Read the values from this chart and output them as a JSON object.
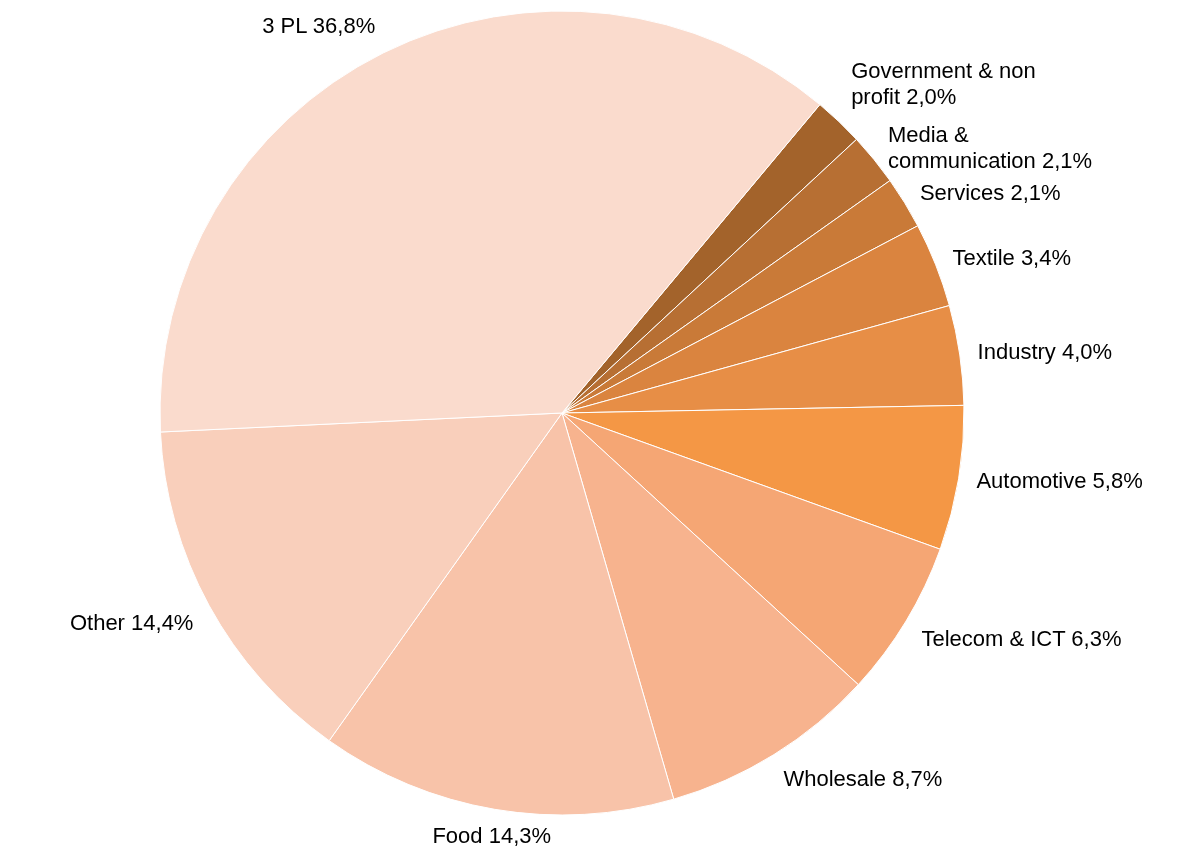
{
  "chart_data": {
    "type": "pie",
    "categories": [
      "Government & non profit",
      "Media & communication",
      "Services",
      "Textile",
      "Industry",
      "Automotive",
      "Telecom & ICT",
      "Wholesale",
      "Food",
      "Other",
      "3 PL"
    ],
    "values": [
      2.0,
      2.1,
      2.1,
      3.4,
      4.0,
      5.8,
      6.3,
      8.7,
      14.3,
      14.4,
      36.8
    ],
    "value_labels": [
      "2,0%",
      "2,1%",
      "2,1%",
      "3,4%",
      "4,0%",
      "5,8%",
      "6,3%",
      "8,7%",
      "14,3%",
      "14,4%",
      "36,8%"
    ],
    "colors": [
      "#a3632b",
      "#b76f33",
      "#c97a38",
      "#da843f",
      "#e78e46",
      "#f49745",
      "#f5a674",
      "#f7b38e",
      "#f8c3a9",
      "#f9cfbb",
      "#fadbcd"
    ],
    "legend": false
  }
}
